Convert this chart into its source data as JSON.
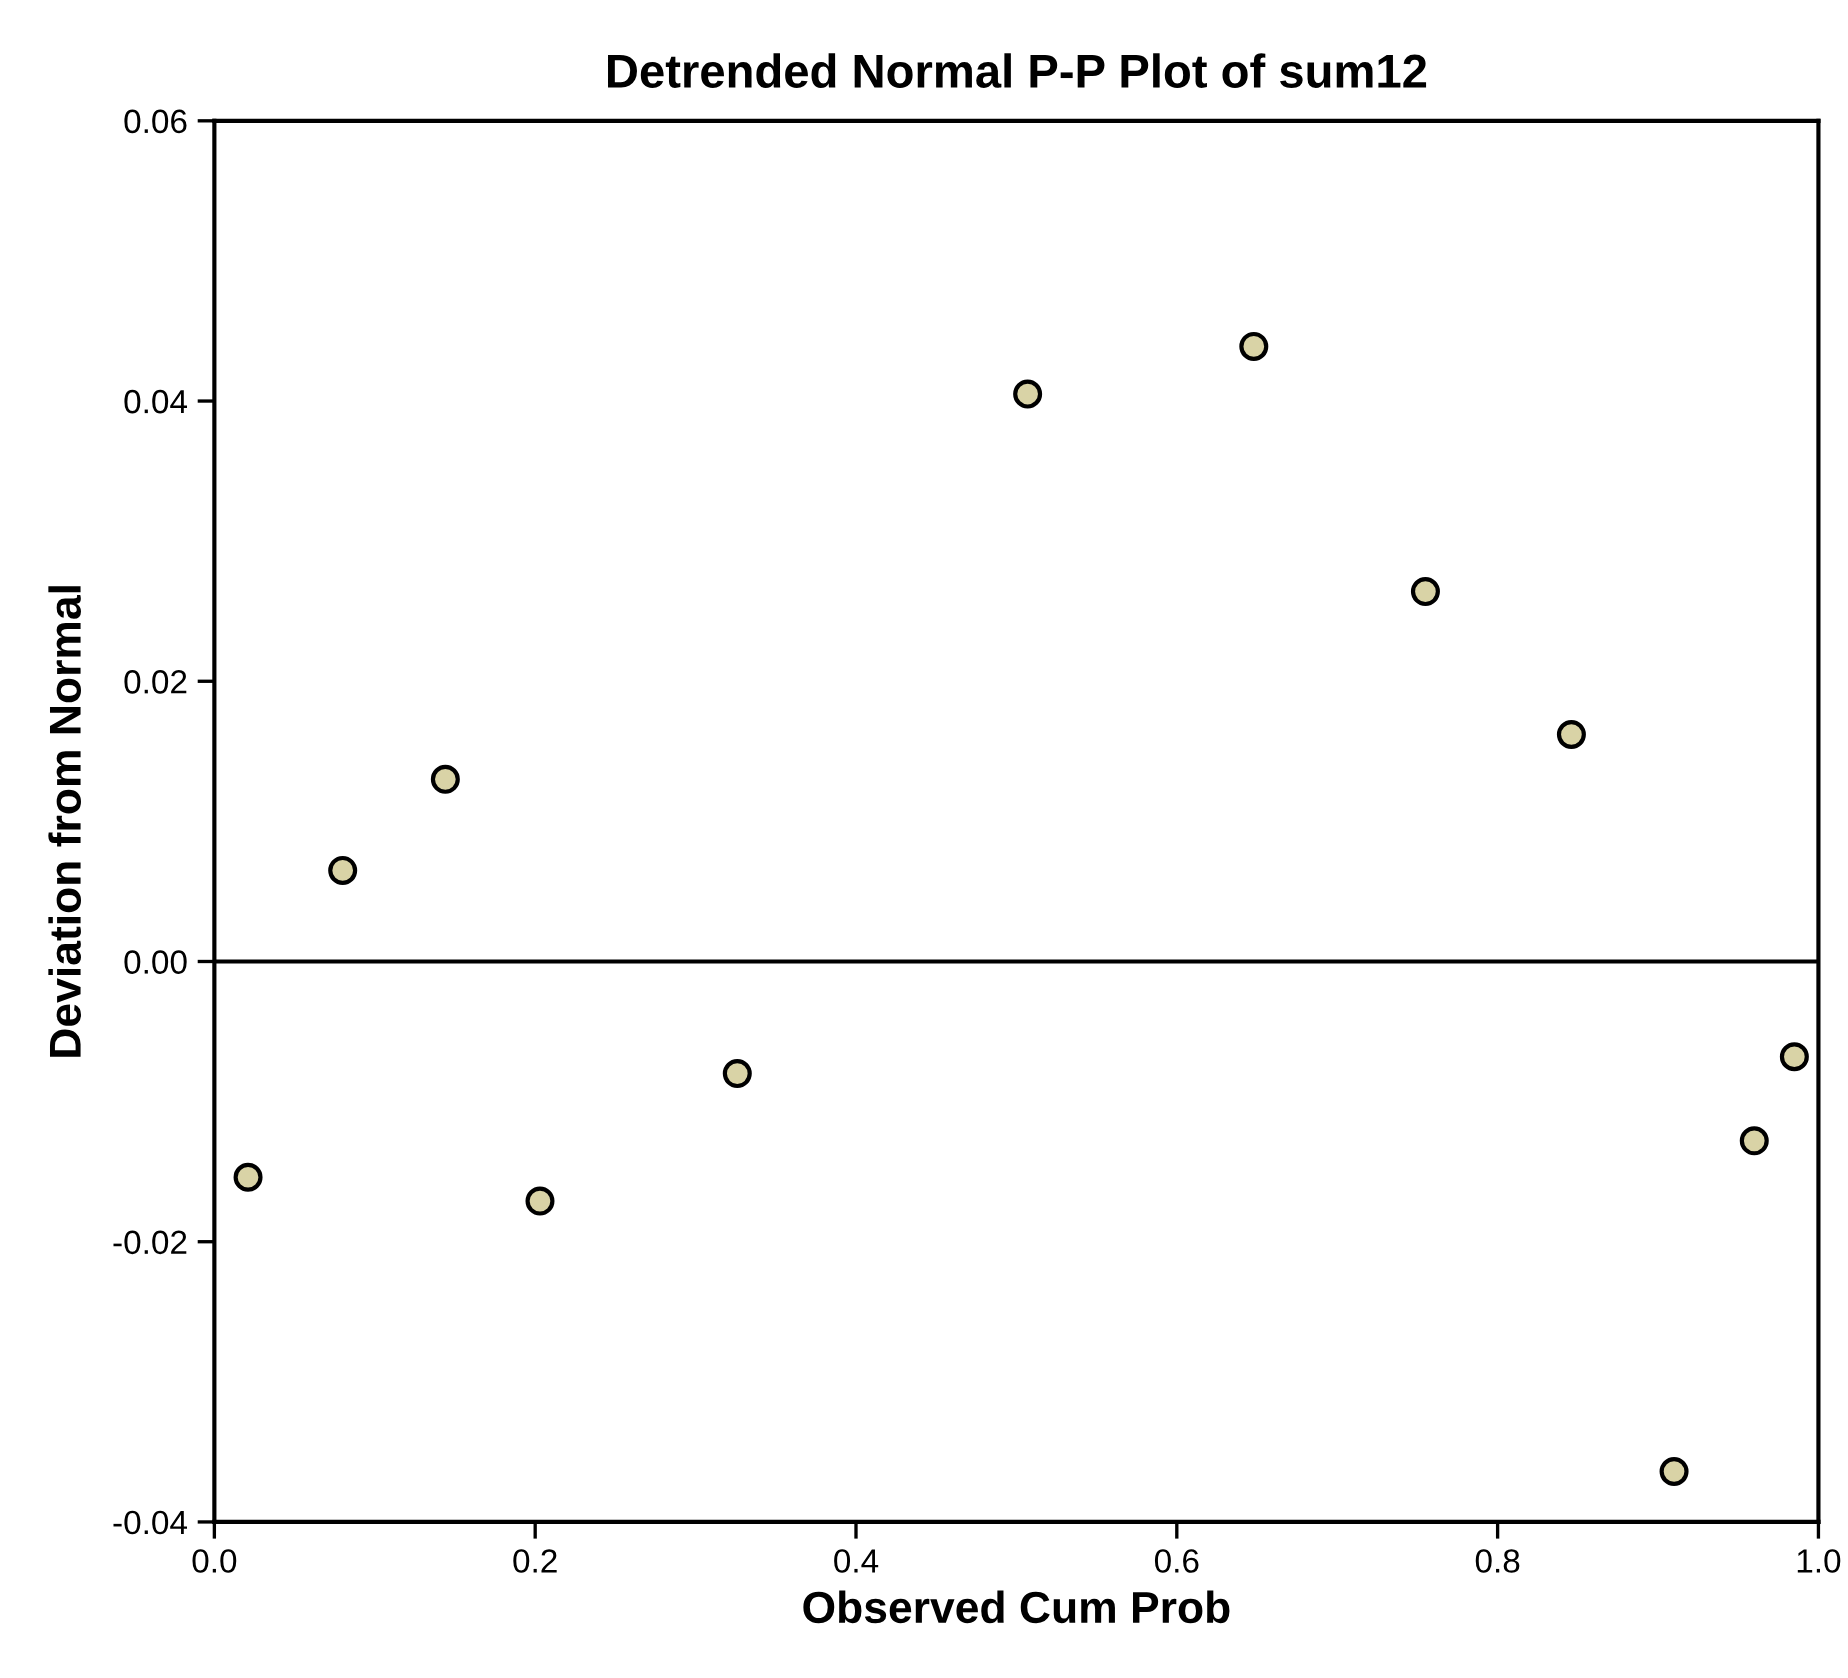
{
  "chart_data": {
    "type": "scatter",
    "title": "Detrended Normal P-P Plot of sum12",
    "xlabel": "Observed Cum Prob",
    "ylabel": "Deviation from Normal",
    "x": [
      0.021,
      0.08,
      0.144,
      0.203,
      0.326,
      0.507,
      0.648,
      0.755,
      0.846,
      0.91,
      0.96,
      0.985
    ],
    "series": [
      {
        "color": "#d9d3a6",
        "values": [
          -0.0154,
          0.0065,
          0.013,
          -0.0171,
          -0.008,
          0.0405,
          0.0439,
          0.0264,
          0.0162,
          -0.0364,
          -0.0128,
          -0.0068
        ]
      }
    ],
    "xlim": [
      0.0,
      1.0
    ],
    "ylim": [
      -0.04,
      0.06
    ],
    "xticks": [
      {
        "value": 0,
        "label": "0.0"
      },
      0.2,
      0.4,
      0.6,
      0.8,
      {
        "value": 1,
        "label": "1.0"
      }
    ],
    "yticks": [
      {
        "value": -0.04,
        "label": "-0.04"
      },
      {
        "value": -0.02,
        "label": "-0.02"
      },
      {
        "value": 0,
        "label": "0.00"
      },
      0.02,
      0.04,
      0.06
    ],
    "ref_lines": [
      {
        "axis": "y",
        "value": 0,
        "label": null,
        "color": "#000000"
      }
    ],
    "marker": "circle",
    "grid": false,
    "legend": false
  }
}
